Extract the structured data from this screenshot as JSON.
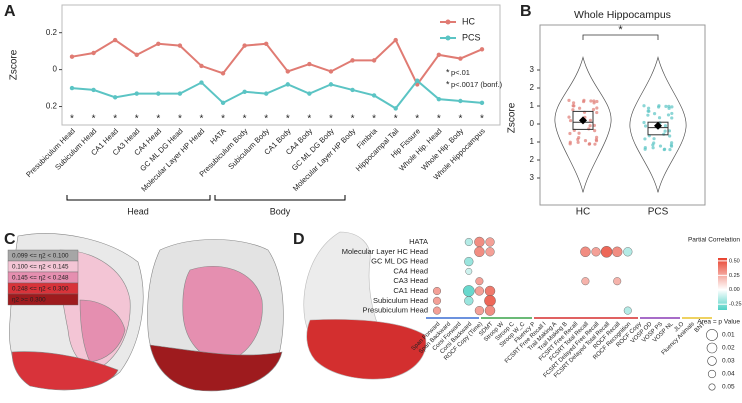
{
  "panel_labels": [
    "A",
    "B",
    "C",
    "D"
  ],
  "chart_data": [
    {
      "type": "line",
      "ylabel": "Zscore",
      "categories": [
        "Presubiculum Head",
        "Subiculum Head",
        "CA1 Head",
        "CA3 Head",
        "CA4 Head",
        "GC ML DG Head",
        "Molecular Layer HP Head",
        "HATA",
        "Presubiculum Body",
        "Subiculum Body",
        "CA1 Body",
        "CA4 Body",
        "GC ML DG Body",
        "Molecular Layer HP Body",
        "Fimbria",
        "Hippocampal Tail",
        "Hip Fissure",
        "Whole Hip. Head",
        "Whole Hip. Body",
        "Whole Hippocampus"
      ],
      "series": [
        {
          "name": "HC",
          "color": "#e07b73",
          "values": [
            0.07,
            0.09,
            0.16,
            0.08,
            0.14,
            0.13,
            0.02,
            -0.02,
            0.13,
            0.14,
            -0.01,
            0.03,
            -0.01,
            0.05,
            0.05,
            0.16,
            -0.08,
            0.08,
            0.06,
            0.11
          ]
        },
        {
          "name": "PCS",
          "color": "#5bc4c4",
          "values": [
            -0.1,
            -0.11,
            -0.15,
            -0.13,
            -0.13,
            -0.13,
            -0.07,
            -0.18,
            -0.12,
            -0.13,
            -0.08,
            -0.13,
            -0.08,
            -0.11,
            -0.14,
            -0.21,
            -0.06,
            -0.16,
            -0.17,
            -0.18
          ]
        }
      ],
      "ylim": [
        -0.3,
        0.35
      ],
      "yticks": [
        {
          "value": -0.2,
          "label": "0.2"
        },
        0,
        0.2
      ],
      "significance": [
        "*",
        "*",
        "*",
        "*",
        "*",
        "*",
        "*",
        "*",
        "*",
        "*",
        "*",
        "*",
        "*",
        "*",
        "*",
        "*",
        "*",
        "*",
        "*",
        "*"
      ],
      "significance_colors": [
        "#000000",
        "#000000",
        "#e8412e",
        "#e8412e",
        "#e8412e",
        "#e8412e",
        "#e8412e",
        "#e8412e",
        "#000000",
        "#e8412e",
        "#000000",
        "#e8412e",
        "#e8412e",
        "#000000",
        "#e8412e",
        "#e8412e",
        "#e8412e",
        "#e8412e",
        "#e8412e",
        "#e8412e"
      ],
      "significance_legend": [
        {
          "symbol": "*",
          "text": "p<.01",
          "color": "#000000"
        },
        {
          "symbol": "*",
          "text": "p<.0017 (bonf.)",
          "color": "#e8412e"
        }
      ],
      "groups": [
        "Head",
        "Body"
      ]
    },
    {
      "type": "violin",
      "title": "Whole Hippocampus",
      "ylabel": "Zscore",
      "categories": [
        "HC",
        "PCS"
      ],
      "colors": [
        "#e07b73",
        "#5bc4c4"
      ],
      "ylim": [
        -4.5,
        5.5
      ],
      "yticks": [
        {
          "value": -3,
          "label": "3"
        },
        {
          "value": -2,
          "label": "2"
        },
        {
          "value": -1,
          "label": "1"
        },
        0,
        1,
        2,
        3
      ],
      "q1": [
        -0.3,
        -0.6
      ],
      "median": [
        0.1,
        -0.2
      ],
      "q3": [
        0.7,
        0.1
      ],
      "mean": [
        0.2,
        -0.1
      ],
      "significance": "*"
    },
    {
      "type": "legend",
      "items": [
        {
          "label": "0.099 <= η2 < 0.100",
          "color": "#a6a6a6"
        },
        {
          "label": "0.100 <= η2 < 0.145",
          "color": "#f3c5d5"
        },
        {
          "label": "0.145 <= η2 < 0.248",
          "color": "#e58fb0"
        },
        {
          "label": "0.248 <= η2 < 0.300",
          "color": "#d8333a"
        },
        {
          "label": "η2 >= 0.300",
          "color": "#9e1b1e"
        }
      ]
    },
    {
      "type": "dotmatrix",
      "rows": [
        "HATA",
        "Molecular Layer HC Head",
        "GC ML DG Head",
        "CA4 Head",
        "CA3 Head",
        "CA1 Head",
        "Subiculum Head",
        "Presubiculum Head"
      ],
      "columns": [
        "Span Forward",
        "Span Backward",
        "Corsi Forward",
        "Corsi Backward",
        "ROCF Copy (Time)",
        "SDMT",
        "Stroop W",
        "Stroop C",
        "Stroop W_C",
        "Fluency P",
        "FCSRT Free Recall I",
        "Trail Making A",
        "Trail Making B",
        "FCSRT Free Recall",
        "FCSRT Total Recall",
        "FCSRT Delayed Free Recall",
        "FCSRT Delayed Total Recall",
        "ROCF Recall",
        "ROCF Recognition",
        "ROCF Copy",
        "VOSP OD",
        "VOSP PS",
        "VOSP NL",
        "JLO",
        "Fluency Animals",
        "BNT"
      ],
      "values": [
        [
          null,
          null,
          null,
          -0.15,
          0.3,
          0.25,
          null,
          null,
          null,
          null,
          null,
          null,
          null,
          null,
          null,
          null,
          null,
          null,
          null,
          null,
          null,
          null,
          null,
          null,
          null,
          null
        ],
        [
          null,
          null,
          null,
          null,
          0.3,
          0.25,
          null,
          null,
          null,
          null,
          null,
          null,
          null,
          null,
          0.3,
          0.25,
          0.4,
          0.3,
          -0.15,
          null,
          null,
          null,
          null,
          null,
          null,
          null
        ],
        [
          null,
          null,
          null,
          -0.2,
          null,
          null,
          null,
          null,
          null,
          null,
          null,
          null,
          null,
          null,
          null,
          null,
          null,
          null,
          null,
          null,
          null,
          null,
          null,
          null,
          null,
          null
        ],
        [
          null,
          null,
          null,
          -0.1,
          null,
          null,
          null,
          null,
          null,
          null,
          null,
          null,
          null,
          null,
          null,
          null,
          null,
          null,
          null,
          null,
          null,
          null,
          null,
          null,
          null,
          null
        ],
        [
          null,
          null,
          null,
          null,
          0.25,
          null,
          null,
          null,
          null,
          null,
          null,
          null,
          null,
          null,
          0.2,
          null,
          null,
          0.2,
          null,
          null,
          null,
          null,
          null,
          null,
          null,
          null
        ],
        [
          0.25,
          null,
          null,
          -0.3,
          0.25,
          0.35,
          null,
          null,
          null,
          null,
          null,
          null,
          null,
          null,
          null,
          null,
          null,
          null,
          null,
          null,
          null,
          null,
          null,
          null,
          null,
          null
        ],
        [
          0.25,
          null,
          null,
          -0.2,
          null,
          0.4,
          null,
          null,
          null,
          null,
          null,
          null,
          null,
          null,
          null,
          null,
          null,
          null,
          null,
          null,
          null,
          null,
          null,
          null,
          null,
          null
        ],
        [
          0.25,
          null,
          null,
          null,
          0.25,
          0.3,
          null,
          null,
          null,
          null,
          null,
          null,
          null,
          null,
          null,
          null,
          null,
          null,
          -0.15,
          null,
          null,
          null,
          null,
          null,
          null,
          null
        ]
      ],
      "p_values": [
        [
          null,
          null,
          null,
          0.04,
          0.02,
          0.03,
          null,
          null,
          null,
          null,
          null,
          null,
          null,
          null,
          null,
          null,
          null,
          null,
          null,
          null,
          null,
          null,
          null,
          null,
          null,
          null
        ],
        [
          null,
          null,
          null,
          null,
          0.02,
          0.03,
          null,
          null,
          null,
          null,
          null,
          null,
          null,
          null,
          0.02,
          0.03,
          0.01,
          0.02,
          0.03,
          null,
          null,
          null,
          null,
          null,
          null,
          null
        ],
        [
          null,
          null,
          null,
          0.03,
          null,
          null,
          null,
          null,
          null,
          null,
          null,
          null,
          null,
          null,
          null,
          null,
          null,
          null,
          null,
          null,
          null,
          null,
          null,
          null,
          null,
          null
        ],
        [
          null,
          null,
          null,
          0.05,
          null,
          null,
          null,
          null,
          null,
          null,
          null,
          null,
          null,
          null,
          null,
          null,
          null,
          null,
          null,
          null,
          null,
          null,
          null,
          null,
          null,
          null
        ],
        [
          null,
          null,
          null,
          null,
          0.04,
          null,
          null,
          null,
          null,
          null,
          null,
          null,
          null,
          null,
          0.04,
          null,
          null,
          0.04,
          null,
          null,
          null,
          null,
          null,
          null,
          null,
          null
        ],
        [
          0.04,
          null,
          null,
          0.01,
          0.03,
          0.02,
          null,
          null,
          null,
          null,
          null,
          null,
          null,
          null,
          null,
          null,
          null,
          null,
          null,
          null,
          null,
          null,
          null,
          null,
          null,
          null
        ],
        [
          0.04,
          null,
          null,
          0.03,
          null,
          0.01,
          null,
          null,
          null,
          null,
          null,
          null,
          null,
          null,
          null,
          null,
          null,
          null,
          null,
          null,
          null,
          null,
          null,
          null,
          null,
          null
        ],
        [
          0.04,
          null,
          null,
          null,
          0.03,
          0.02,
          null,
          null,
          null,
          null,
          null,
          null,
          null,
          null,
          null,
          null,
          null,
          null,
          0.04,
          null,
          null,
          null,
          null,
          null,
          null,
          null
        ]
      ],
      "colorbar_title": "Partial Correlation",
      "clim": [
        -0.35,
        0.55
      ],
      "colorbar_ticks": [
        {
          "value": 0.5,
          "label": "0.50"
        },
        {
          "value": 0.25,
          "label": "0.25"
        },
        {
          "value": 0,
          "label": "0.00"
        },
        {
          "value": -0.25,
          "label": "-0.25"
        }
      ],
      "positive_color": "#e8412e",
      "negative_color": "#4fd1c5",
      "size_title": "Area = p Value",
      "size_ticks": [
        0.01,
        0.02,
        0.03,
        0.04,
        0.05
      ]
    }
  ]
}
